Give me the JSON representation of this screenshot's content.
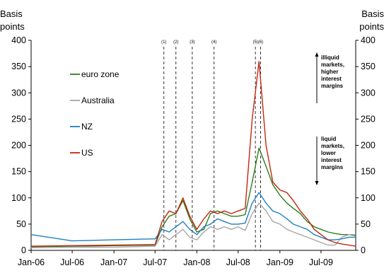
{
  "chart_data": {
    "type": "line",
    "title": "",
    "ylabel_left": [
      "Basis",
      "points"
    ],
    "ylabel_right": [
      "Basis",
      "points"
    ],
    "ylim": [
      0,
      400
    ],
    "yticks": [
      0,
      50,
      100,
      150,
      200,
      250,
      300,
      350,
      400
    ],
    "xlim": [
      "2006-01",
      "2009-12"
    ],
    "xticks": [
      {
        "label": "Jan-06",
        "x": "2006-01"
      },
      {
        "label": "Jul-06",
        "x": "2006-07"
      },
      {
        "label": "Jan-07",
        "x": "2007-01"
      },
      {
        "label": "Jul-07",
        "x": "2007-07"
      },
      {
        "label": "Jan-08",
        "x": "2008-01"
      },
      {
        "label": "Jul-08",
        "x": "2008-07"
      },
      {
        "label": "Jan-09",
        "x": "2009-01"
      },
      {
        "label": "Jul-09",
        "x": "2009-07"
      }
    ],
    "series": [
      {
        "name": "euro zone",
        "color": "#2e7d1e",
        "x": [
          "2006-01",
          "2006-07",
          "2007-01",
          "2007-07",
          "2007-08",
          "2007-09",
          "2007-10",
          "2007-11",
          "2007-12",
          "2008-01",
          "2008-02",
          "2008-03",
          "2008-04",
          "2008-05",
          "2008-06",
          "2008-07",
          "2008-08",
          "2008-09",
          "2008-10",
          "2008-11",
          "2008-12",
          "2009-01",
          "2009-02",
          "2009-03",
          "2009-04",
          "2009-05",
          "2009-06",
          "2009-07",
          "2009-08",
          "2009-09",
          "2009-10",
          "2009-11",
          "2009-12"
        ],
        "y": [
          7,
          8,
          9,
          10,
          45,
          65,
          70,
          95,
          60,
          35,
          40,
          70,
          75,
          70,
          65,
          65,
          68,
          130,
          195,
          160,
          125,
          105,
          90,
          80,
          70,
          55,
          45,
          40,
          35,
          32,
          30,
          30,
          28
        ]
      },
      {
        "name": "Australia",
        "color": "#a6a6a6",
        "x": [
          "2006-01",
          "2006-07",
          "2007-01",
          "2007-07",
          "2007-08",
          "2007-09",
          "2007-10",
          "2007-11",
          "2007-12",
          "2008-01",
          "2008-02",
          "2008-03",
          "2008-04",
          "2008-05",
          "2008-06",
          "2008-07",
          "2008-08",
          "2008-09",
          "2008-10",
          "2008-11",
          "2008-12",
          "2009-01",
          "2009-02",
          "2009-03",
          "2009-04",
          "2009-05",
          "2009-06",
          "2009-07",
          "2009-08",
          "2009-09",
          "2009-10",
          "2009-11",
          "2009-12"
        ],
        "y": [
          5,
          6,
          6,
          8,
          30,
          20,
          30,
          40,
          25,
          20,
          35,
          45,
          40,
          45,
          40,
          45,
          38,
          70,
          90,
          75,
          55,
          50,
          40,
          35,
          30,
          25,
          20,
          15,
          10,
          10,
          25,
          30,
          30
        ]
      },
      {
        "name": "NZ",
        "color": "#1f7fbf",
        "x": [
          "2006-01",
          "2006-07",
          "2007-01",
          "2007-07",
          "2007-08",
          "2007-09",
          "2007-10",
          "2007-11",
          "2007-12",
          "2008-01",
          "2008-02",
          "2008-03",
          "2008-04",
          "2008-05",
          "2008-06",
          "2008-07",
          "2008-08",
          "2008-09",
          "2008-10",
          "2008-11",
          "2008-12",
          "2009-01",
          "2009-02",
          "2009-03",
          "2009-04",
          "2009-05",
          "2009-06",
          "2009-07",
          "2009-08",
          "2009-09",
          "2009-10",
          "2009-11",
          "2009-12"
        ],
        "y": [
          30,
          18,
          20,
          22,
          40,
          35,
          45,
          55,
          40,
          30,
          45,
          50,
          60,
          55,
          50,
          50,
          52,
          90,
          110,
          90,
          75,
          70,
          60,
          50,
          45,
          40,
          30,
          25,
          20,
          20,
          22,
          25,
          25
        ]
      },
      {
        "name": "US",
        "color": "#c0280f",
        "x": [
          "2006-01",
          "2006-07",
          "2007-01",
          "2007-07",
          "2007-08",
          "2007-09",
          "2007-10",
          "2007-11",
          "2007-12",
          "2008-01",
          "2008-02",
          "2008-03",
          "2008-04",
          "2008-05",
          "2008-06",
          "2008-07",
          "2008-08",
          "2008-09",
          "2008-10",
          "2008-11",
          "2008-12",
          "2009-01",
          "2009-02",
          "2009-03",
          "2009-04",
          "2009-05",
          "2009-06",
          "2009-07",
          "2009-08",
          "2009-09",
          "2009-10",
          "2009-11",
          "2009-12"
        ],
        "y": [
          8,
          9,
          10,
          11,
          55,
          75,
          70,
          100,
          65,
          40,
          60,
          75,
          70,
          75,
          70,
          75,
          80,
          250,
          360,
          200,
          130,
          115,
          110,
          95,
          75,
          60,
          40,
          30,
          20,
          15,
          12,
          10,
          8
        ]
      }
    ],
    "events": [
      {
        "label": "(1)",
        "x": "2007-08-09"
      },
      {
        "label": "(2)",
        "x": "2007-10-01"
      },
      {
        "label": "(3)",
        "x": "2007-12-12"
      },
      {
        "label": "(4)",
        "x": "2008-03-17"
      },
      {
        "label": "(5)",
        "x": "2008-09-15"
      },
      {
        "label": "(6)",
        "x": "2008-10-08"
      }
    ],
    "annotations": {
      "upper": [
        "illiquid",
        "markets,",
        "higher",
        "interest",
        "margins"
      ],
      "lower": [
        "liquid",
        "markets,",
        "lower",
        "interest",
        "margins"
      ]
    },
    "legend_placement": "left",
    "grid": false
  }
}
